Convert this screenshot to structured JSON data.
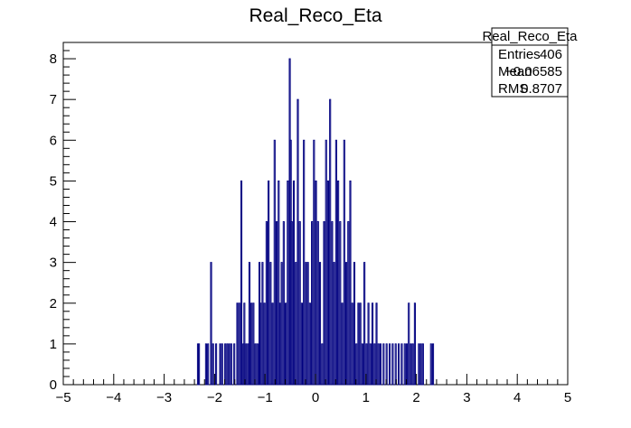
{
  "chart_data": {
    "type": "bar",
    "title": "Real_Reco_Eta",
    "xlabel": "",
    "ylabel": "",
    "xlim": [
      -5,
      5
    ],
    "ylim": [
      0,
      8.4
    ],
    "bin_width": 0.02,
    "x_ticks": [
      "−5",
      "−4",
      "−3",
      "−2",
      "−1",
      "0",
      "1",
      "2",
      "3",
      "4",
      "5"
    ],
    "y_ticks": [
      "0",
      "1",
      "2",
      "3",
      "4",
      "5",
      "6",
      "7",
      "8"
    ],
    "line_color": "#000080",
    "stats_box": {
      "name": "Real_Reco_Eta",
      "rows": [
        {
          "label": "Entries",
          "value": "406"
        },
        {
          "label": "Mean",
          "value": "−0.06585"
        },
        {
          "label": "RMS",
          "value": "0.8707"
        }
      ]
    },
    "bins": [
      {
        "x": -2.33,
        "y": 1
      },
      {
        "x": -2.31,
        "y": 1
      },
      {
        "x": -2.17,
        "y": 1
      },
      {
        "x": -2.13,
        "y": 1
      },
      {
        "x": -2.07,
        "y": 3
      },
      {
        "x": -2.03,
        "y": 1
      },
      {
        "x": -1.97,
        "y": 1
      },
      {
        "x": -1.89,
        "y": 1
      },
      {
        "x": -1.85,
        "y": 1
      },
      {
        "x": -1.79,
        "y": 1
      },
      {
        "x": -1.75,
        "y": 1
      },
      {
        "x": -1.71,
        "y": 1
      },
      {
        "x": -1.67,
        "y": 1
      },
      {
        "x": -1.61,
        "y": 1
      },
      {
        "x": -1.55,
        "y": 2
      },
      {
        "x": -1.51,
        "y": 2
      },
      {
        "x": -1.47,
        "y": 5
      },
      {
        "x": -1.43,
        "y": 1
      },
      {
        "x": -1.41,
        "y": 2
      },
      {
        "x": -1.37,
        "y": 1
      },
      {
        "x": -1.33,
        "y": 1
      },
      {
        "x": -1.31,
        "y": 3
      },
      {
        "x": -1.27,
        "y": 2
      },
      {
        "x": -1.23,
        "y": 2
      },
      {
        "x": -1.19,
        "y": 1
      },
      {
        "x": -1.15,
        "y": 1
      },
      {
        "x": -1.11,
        "y": 3
      },
      {
        "x": -1.09,
        "y": 2
      },
      {
        "x": -1.05,
        "y": 3
      },
      {
        "x": -1.01,
        "y": 2
      },
      {
        "x": -0.97,
        "y": 4
      },
      {
        "x": -0.93,
        "y": 5
      },
      {
        "x": -0.89,
        "y": 3
      },
      {
        "x": -0.85,
        "y": 2
      },
      {
        "x": -0.81,
        "y": 6
      },
      {
        "x": -0.77,
        "y": 4
      },
      {
        "x": -0.73,
        "y": 5
      },
      {
        "x": -0.71,
        "y": 2
      },
      {
        "x": -0.67,
        "y": 3
      },
      {
        "x": -0.63,
        "y": 4
      },
      {
        "x": -0.59,
        "y": 2
      },
      {
        "x": -0.55,
        "y": 5
      },
      {
        "x": -0.51,
        "y": 8
      },
      {
        "x": -0.49,
        "y": 6
      },
      {
        "x": -0.47,
        "y": 4
      },
      {
        "x": -0.43,
        "y": 5
      },
      {
        "x": -0.39,
        "y": 3
      },
      {
        "x": -0.35,
        "y": 7
      },
      {
        "x": -0.31,
        "y": 4
      },
      {
        "x": -0.27,
        "y": 2
      },
      {
        "x": -0.23,
        "y": 6
      },
      {
        "x": -0.19,
        "y": 3
      },
      {
        "x": -0.15,
        "y": 3
      },
      {
        "x": -0.11,
        "y": 2
      },
      {
        "x": -0.07,
        "y": 4
      },
      {
        "x": -0.03,
        "y": 6
      },
      {
        "x": 0.01,
        "y": 5
      },
      {
        "x": 0.05,
        "y": 4
      },
      {
        "x": 0.09,
        "y": 3
      },
      {
        "x": 0.13,
        "y": 1
      },
      {
        "x": 0.17,
        "y": 4
      },
      {
        "x": 0.21,
        "y": 6
      },
      {
        "x": 0.25,
        "y": 5
      },
      {
        "x": 0.29,
        "y": 7
      },
      {
        "x": 0.33,
        "y": 4
      },
      {
        "x": 0.37,
        "y": 3
      },
      {
        "x": 0.41,
        "y": 6
      },
      {
        "x": 0.45,
        "y": 5
      },
      {
        "x": 0.49,
        "y": 4
      },
      {
        "x": 0.53,
        "y": 2
      },
      {
        "x": 0.57,
        "y": 6
      },
      {
        "x": 0.61,
        "y": 3
      },
      {
        "x": 0.65,
        "y": 4
      },
      {
        "x": 0.69,
        "y": 5
      },
      {
        "x": 0.73,
        "y": 2
      },
      {
        "x": 0.77,
        "y": 3
      },
      {
        "x": 0.81,
        "y": 1
      },
      {
        "x": 0.85,
        "y": 2
      },
      {
        "x": 0.89,
        "y": 2
      },
      {
        "x": 0.93,
        "y": 1
      },
      {
        "x": 0.97,
        "y": 3
      },
      {
        "x": 1.01,
        "y": 1
      },
      {
        "x": 1.05,
        "y": 2
      },
      {
        "x": 1.09,
        "y": 1
      },
      {
        "x": 1.13,
        "y": 2
      },
      {
        "x": 1.17,
        "y": 1
      },
      {
        "x": 1.21,
        "y": 2
      },
      {
        "x": 1.25,
        "y": 1
      },
      {
        "x": 1.29,
        "y": 1
      },
      {
        "x": 1.35,
        "y": 1
      },
      {
        "x": 1.41,
        "y": 1
      },
      {
        "x": 1.47,
        "y": 1
      },
      {
        "x": 1.53,
        "y": 1
      },
      {
        "x": 1.59,
        "y": 1
      },
      {
        "x": 1.65,
        "y": 1
      },
      {
        "x": 1.71,
        "y": 1
      },
      {
        "x": 1.77,
        "y": 1
      },
      {
        "x": 1.81,
        "y": 1
      },
      {
        "x": 1.85,
        "y": 2
      },
      {
        "x": 1.89,
        "y": 1
      },
      {
        "x": 1.93,
        "y": 1
      },
      {
        "x": 1.97,
        "y": 2
      },
      {
        "x": 2.05,
        "y": 1
      },
      {
        "x": 2.09,
        "y": 1
      },
      {
        "x": 2.13,
        "y": 1
      },
      {
        "x": 2.29,
        "y": 1
      },
      {
        "x": 2.33,
        "y": 1
      }
    ]
  }
}
